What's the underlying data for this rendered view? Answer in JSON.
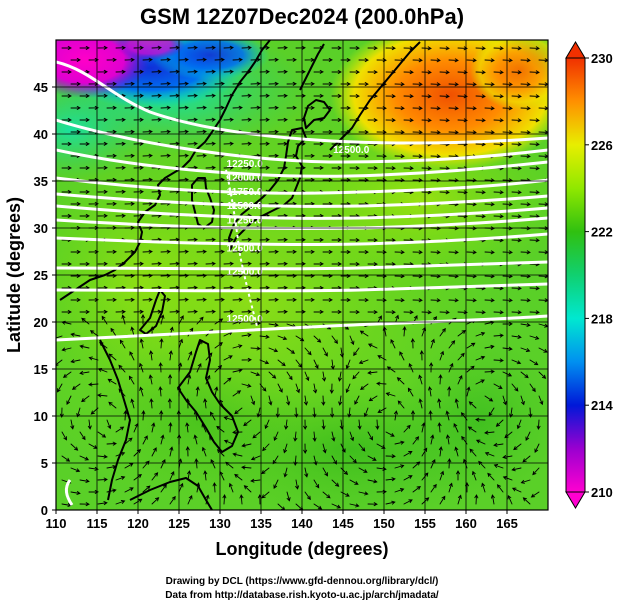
{
  "title": "GSM 12Z07Dec2024 (200.0hPa)",
  "credits": {
    "line1": "Drawing by DCL (https://www.gfd-dennou.org/library/dcl/)",
    "line2": "Data from http://database.rish.kyoto-u.ac.jp/arch/jmadata/"
  },
  "chart_data": {
    "type": "heatmap",
    "title": "GSM 12Z07Dec2024 (200.0hPa)",
    "xlabel": "Longitude (degrees)",
    "ylabel": "Latitude  (degrees)",
    "xlim": [
      110,
      170
    ],
    "ylim": [
      0,
      50
    ],
    "x_ticks": [
      110,
      115,
      120,
      125,
      130,
      135,
      140,
      145,
      150,
      155,
      160,
      165
    ],
    "y_ticks": [
      0,
      5,
      10,
      15,
      20,
      25,
      30,
      35,
      40,
      45
    ],
    "grid": true,
    "colorbar": {
      "ticks": [
        210,
        214,
        218,
        222,
        226,
        230
      ],
      "range": [
        210,
        230
      ],
      "stops": [
        {
          "v": 210,
          "color": "#ff00d0"
        },
        {
          "v": 212,
          "color": "#9a00d0"
        },
        {
          "v": 214,
          "color": "#0018d8"
        },
        {
          "v": 216,
          "color": "#0090f0"
        },
        {
          "v": 218,
          "color": "#00e8d0"
        },
        {
          "v": 220,
          "color": "#10d070"
        },
        {
          "v": 222,
          "color": "#30c010"
        },
        {
          "v": 224,
          "color": "#90e800"
        },
        {
          "v": 226,
          "color": "#e8ee00"
        },
        {
          "v": 228,
          "color": "#ff9000"
        },
        {
          "v": 230,
          "color": "#f03000"
        }
      ]
    },
    "contour_labels": [
      {
        "text": "12500.0",
        "lon": 146,
        "lat": 38
      },
      {
        "text": "12250.0",
        "lon": 133,
        "lat": 36.5
      },
      {
        "text": "12000.0",
        "lon": 133,
        "lat": 35
      },
      {
        "text": "11750.0",
        "lon": 133,
        "lat": 33.5
      },
      {
        "text": "11500.0",
        "lon": 133,
        "lat": 32
      },
      {
        "text": "11250.0",
        "lon": 133,
        "lat": 30.5
      },
      {
        "text": "12500.0",
        "lon": 133,
        "lat": 27.5
      },
      {
        "text": "12500.0",
        "lon": 133,
        "lat": 25
      },
      {
        "text": "12500.0",
        "lon": 133,
        "lat": 20
      }
    ]
  }
}
